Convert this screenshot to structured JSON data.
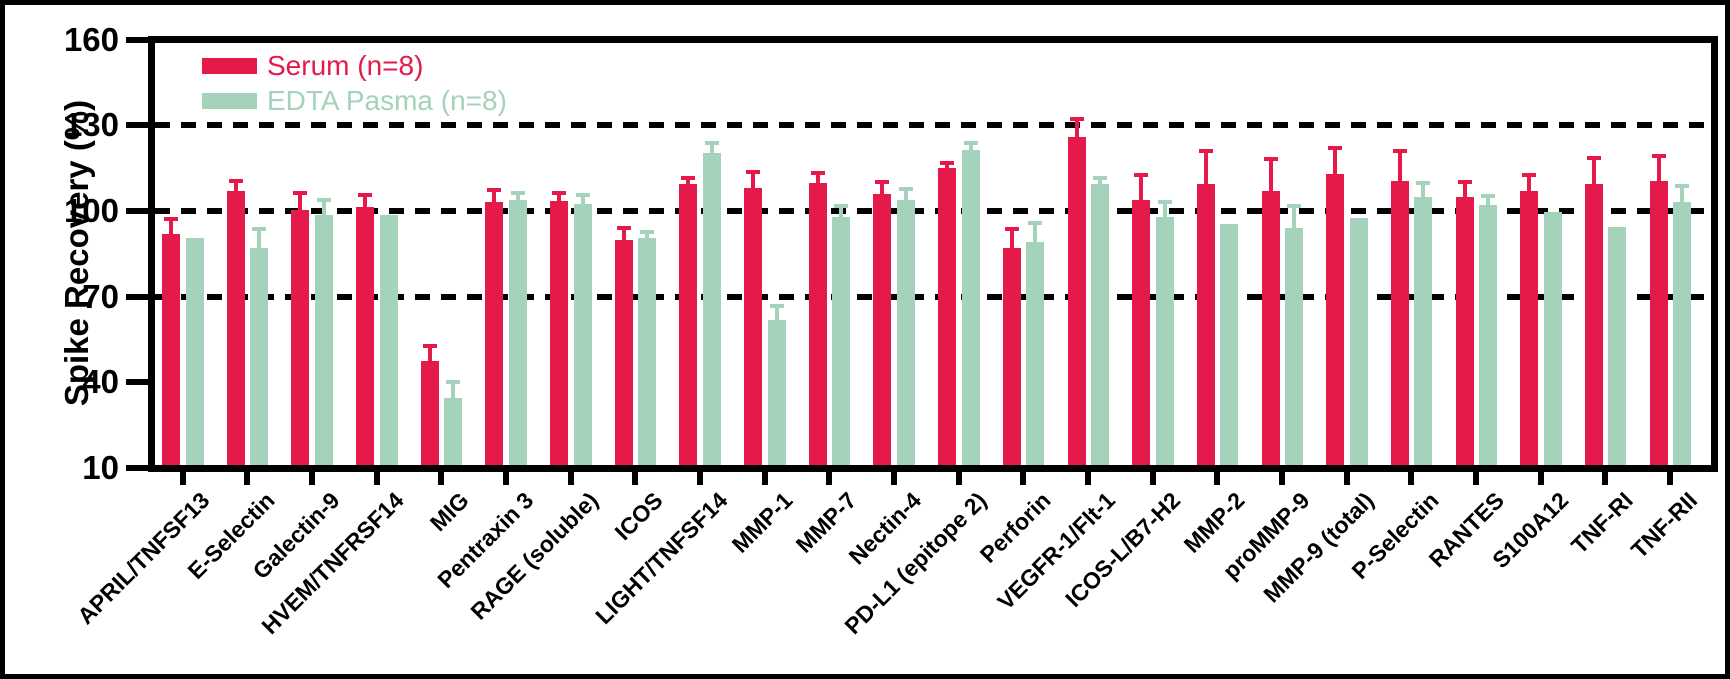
{
  "chart_data": {
    "type": "bar",
    "title": "",
    "xlabel": "",
    "ylabel": "Spike Recovery (%)",
    "ylim": [
      10,
      160
    ],
    "yticks": [
      10,
      40,
      70,
      100,
      130,
      160
    ],
    "dashed_gridlines_at": [
      70,
      100,
      130
    ],
    "legend_position": "top-left inside plot area",
    "grid": "horizontal dashed lines only",
    "categories": [
      "APRIL/TNFSF13",
      "E-Selectin",
      "Galectin-9",
      "HVEM/TNFRSF14",
      "MIG",
      "Pentraxin 3",
      "RAGE (soluble)",
      "ICOS",
      "LIGHT/TNFSF14",
      "MMP-1",
      "MMP-7",
      "Nectin-4",
      "PD-L1 (epitope 2)",
      "Perforin",
      "VEGFR-1/Flt-1",
      "ICOS-L/B7-H2",
      "MMP-2",
      "proMMP-9",
      "MMP-9 (total)",
      "P-Selectin",
      "RANTES",
      "S100A12",
      "TNF-RI",
      "TNF-RII"
    ],
    "series": [
      {
        "name": "Serum (n=8)",
        "color": "#E6194B",
        "values": [
          92,
          107,
          100.5,
          101.5,
          47.5,
          103,
          103.5,
          90,
          109.5,
          108,
          110,
          106,
          115,
          87,
          126,
          104,
          109.5,
          107,
          113,
          110.5,
          105,
          107,
          109.5,
          110.5
        ],
        "error_plus": [
          4.5,
          3,
          5,
          3.5,
          4.5,
          3.5,
          2,
          3.5,
          1.5,
          5,
          2.5,
          3.5,
          1,
          6,
          5.5,
          8,
          11,
          10.5,
          8.5,
          10,
          4.5,
          5,
          8.5,
          8
        ]
      },
      {
        "name": "EDTA Pasma (n=8)",
        "color": "#A5D2BA",
        "values": [
          90.5,
          87,
          98.5,
          98.5,
          34.5,
          104,
          102.5,
          90.5,
          120.5,
          62,
          98,
          104,
          121.5,
          89,
          109.5,
          98,
          95.5,
          94,
          97.5,
          105,
          102,
          99.5,
          94.5,
          103
        ],
        "error_plus": [
          0,
          6,
          4.5,
          0,
          5,
          1.5,
          2.5,
          1.5,
          2.5,
          4,
          3,
          3,
          1.5,
          6,
          1.5,
          4.5,
          0,
          7,
          0,
          4,
          2.5,
          0,
          0,
          5
        ]
      }
    ]
  }
}
